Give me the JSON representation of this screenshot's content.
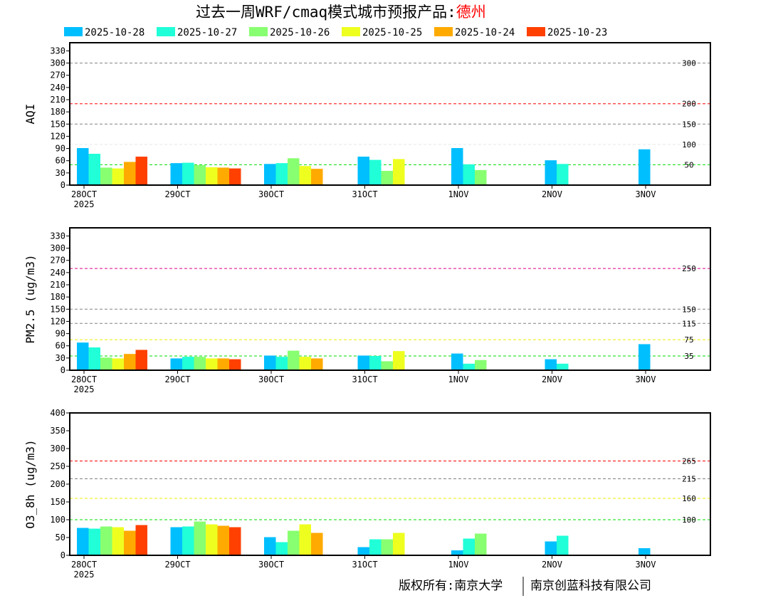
{
  "title": "过去一周WRF/cmaq模式城市预报产品:",
  "city": "德州",
  "footer": {
    "left": "版权所有:南京大学",
    "right": "南京创蓝科技有限公司"
  },
  "chart_data": [
    {
      "type": "bar",
      "ylabel": "AQI",
      "ylim": [
        0,
        350
      ],
      "yticks": [
        0,
        30,
        60,
        90,
        120,
        150,
        180,
        210,
        240,
        270,
        300,
        330
      ],
      "categories": [
        "28OCT",
        "29OCT",
        "30OCT",
        "31OCT",
        "1NOV",
        "2NOV",
        "3NOV"
      ],
      "year_label": "2025",
      "reflines": [
        {
          "value": 300,
          "label": "300",
          "color": "#808080"
        },
        {
          "value": 200,
          "label": "200",
          "color": "#ff0000"
        },
        {
          "value": 150,
          "label": "150",
          "color": "#808080"
        },
        {
          "value": 100,
          "label": "100",
          "color": "#e8e8e8"
        },
        {
          "value": 50,
          "label": "50",
          "color": "#00dd00"
        }
      ],
      "series": [
        {
          "name": "2025-10-28",
          "color": "#00bfff",
          "values": [
            91,
            54,
            52,
            70,
            91,
            61,
            88
          ]
        },
        {
          "name": "2025-10-27",
          "color": "#20ffd8",
          "values": [
            77,
            55,
            54,
            62,
            51,
            52,
            null
          ]
        },
        {
          "name": "2025-10-26",
          "color": "#88ff70",
          "values": [
            43,
            49,
            66,
            35,
            37,
            null,
            null
          ]
        },
        {
          "name": "2025-10-25",
          "color": "#eeff20",
          "values": [
            41,
            44,
            47,
            64,
            null,
            null,
            null
          ]
        },
        {
          "name": "2025-10-24",
          "color": "#ffaa00",
          "values": [
            57,
            43,
            40,
            null,
            null,
            null,
            null
          ]
        },
        {
          "name": "2025-10-23",
          "color": "#ff4000",
          "values": [
            70,
            41,
            null,
            null,
            null,
            null,
            null
          ]
        }
      ]
    },
    {
      "type": "bar",
      "ylabel": "PM2.5 (ug/m3)",
      "ylim": [
        0,
        350
      ],
      "yticks": [
        0,
        30,
        60,
        90,
        120,
        150,
        180,
        210,
        240,
        270,
        300,
        330
      ],
      "categories": [
        "28OCT",
        "29OCT",
        "30OCT",
        "31OCT",
        "1NOV",
        "2NOV",
        "3NOV"
      ],
      "year_label": "2025",
      "reflines": [
        {
          "value": 250,
          "label": "250",
          "color": "#dd0088"
        },
        {
          "value": 150,
          "label": "150",
          "color": "#808080"
        },
        {
          "value": 115,
          "label": "115",
          "color": "#808080"
        },
        {
          "value": 75,
          "label": "75",
          "color": "#eeee00"
        },
        {
          "value": 35,
          "label": "35",
          "color": "#00dd00"
        }
      ],
      "series": [
        {
          "name": "2025-10-28",
          "color": "#00bfff",
          "values": [
            68,
            29,
            36,
            36,
            41,
            27,
            64
          ]
        },
        {
          "name": "2025-10-27",
          "color": "#20ffd8",
          "values": [
            56,
            33,
            33,
            35,
            16,
            16,
            null
          ]
        },
        {
          "name": "2025-10-26",
          "color": "#88ff70",
          "values": [
            31,
            33,
            48,
            22,
            25,
            null,
            null
          ]
        },
        {
          "name": "2025-10-25",
          "color": "#eeff20",
          "values": [
            29,
            29,
            33,
            47,
            null,
            null,
            null
          ]
        },
        {
          "name": "2025-10-24",
          "color": "#ffaa00",
          "values": [
            40,
            29,
            29,
            null,
            null,
            null,
            null
          ]
        },
        {
          "name": "2025-10-23",
          "color": "#ff4000",
          "values": [
            50,
            27,
            null,
            null,
            null,
            null,
            null
          ]
        }
      ]
    },
    {
      "type": "bar",
      "ylabel": "O3_8h (ug/m3)",
      "ylim": [
        0,
        400
      ],
      "yticks": [
        0,
        50,
        100,
        150,
        200,
        250,
        300,
        350,
        400
      ],
      "categories": [
        "28OCT",
        "29OCT",
        "30OCT",
        "31OCT",
        "1NOV",
        "2NOV",
        "3NOV"
      ],
      "year_label": "2025",
      "reflines": [
        {
          "value": 265,
          "label": "265",
          "color": "#ff0000"
        },
        {
          "value": 215,
          "label": "215",
          "color": "#808080"
        },
        {
          "value": 160,
          "label": "160",
          "color": "#eeee00"
        },
        {
          "value": 100,
          "label": "100",
          "color": "#00dd00"
        }
      ],
      "series": [
        {
          "name": "2025-10-28",
          "color": "#00bfff",
          "values": [
            77,
            79,
            51,
            23,
            14,
            39,
            20
          ]
        },
        {
          "name": "2025-10-27",
          "color": "#20ffd8",
          "values": [
            75,
            81,
            37,
            45,
            47,
            55,
            null
          ]
        },
        {
          "name": "2025-10-26",
          "color": "#88ff70",
          "values": [
            81,
            95,
            69,
            45,
            61,
            null,
            null
          ]
        },
        {
          "name": "2025-10-25",
          "color": "#eeff20",
          "values": [
            79,
            87,
            87,
            63,
            null,
            null,
            null
          ]
        },
        {
          "name": "2025-10-24",
          "color": "#ffaa00",
          "values": [
            69,
            83,
            63,
            null,
            null,
            null,
            null
          ]
        },
        {
          "name": "2025-10-23",
          "color": "#ff4000",
          "values": [
            85,
            79,
            null,
            null,
            null,
            null,
            null
          ]
        }
      ]
    }
  ]
}
